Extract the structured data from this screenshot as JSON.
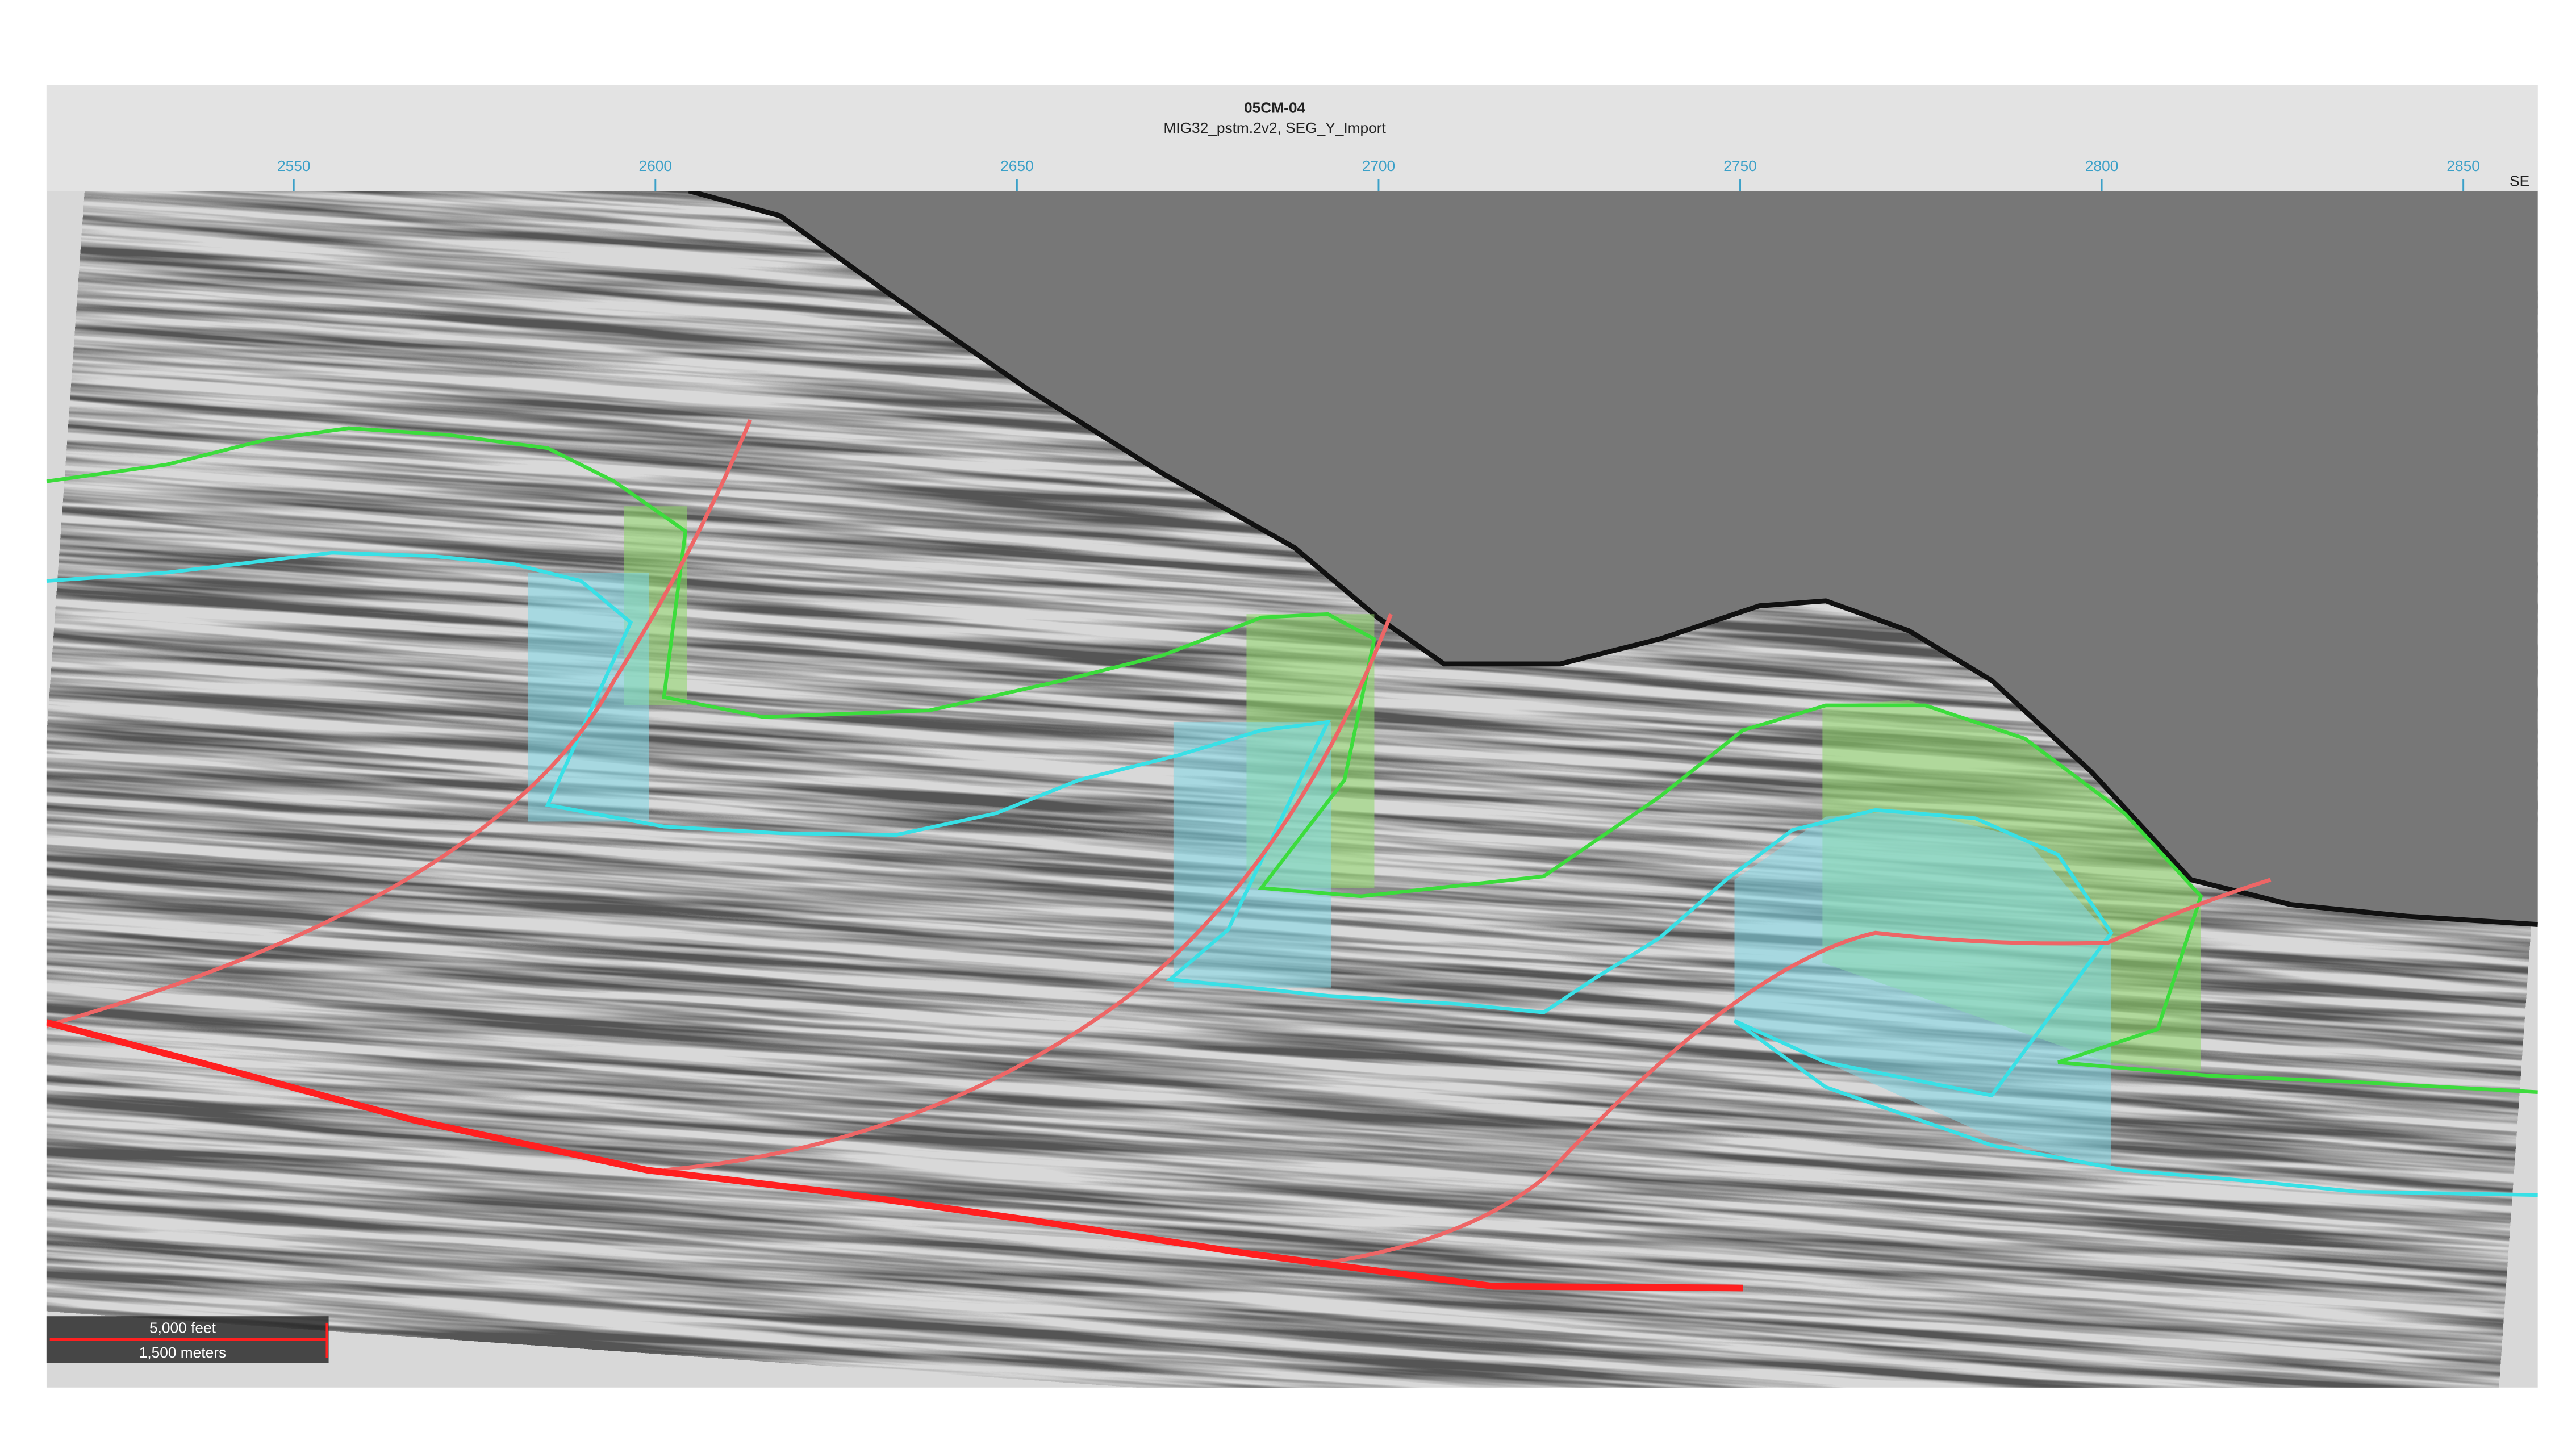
{
  "header": {
    "title": "05CM-04",
    "subtitle": "MIG32_pstm.2v2, SEG_Y_Import"
  },
  "axis": {
    "xlim": [
      2515.8,
      2860.3
    ],
    "ticks": [
      2550,
      2600,
      2650,
      2700,
      2750,
      2800,
      2850
    ],
    "direction": "SE"
  },
  "scale_bar": {
    "feet": "5,000 feet",
    "meters": "1,500 meters"
  }
}
